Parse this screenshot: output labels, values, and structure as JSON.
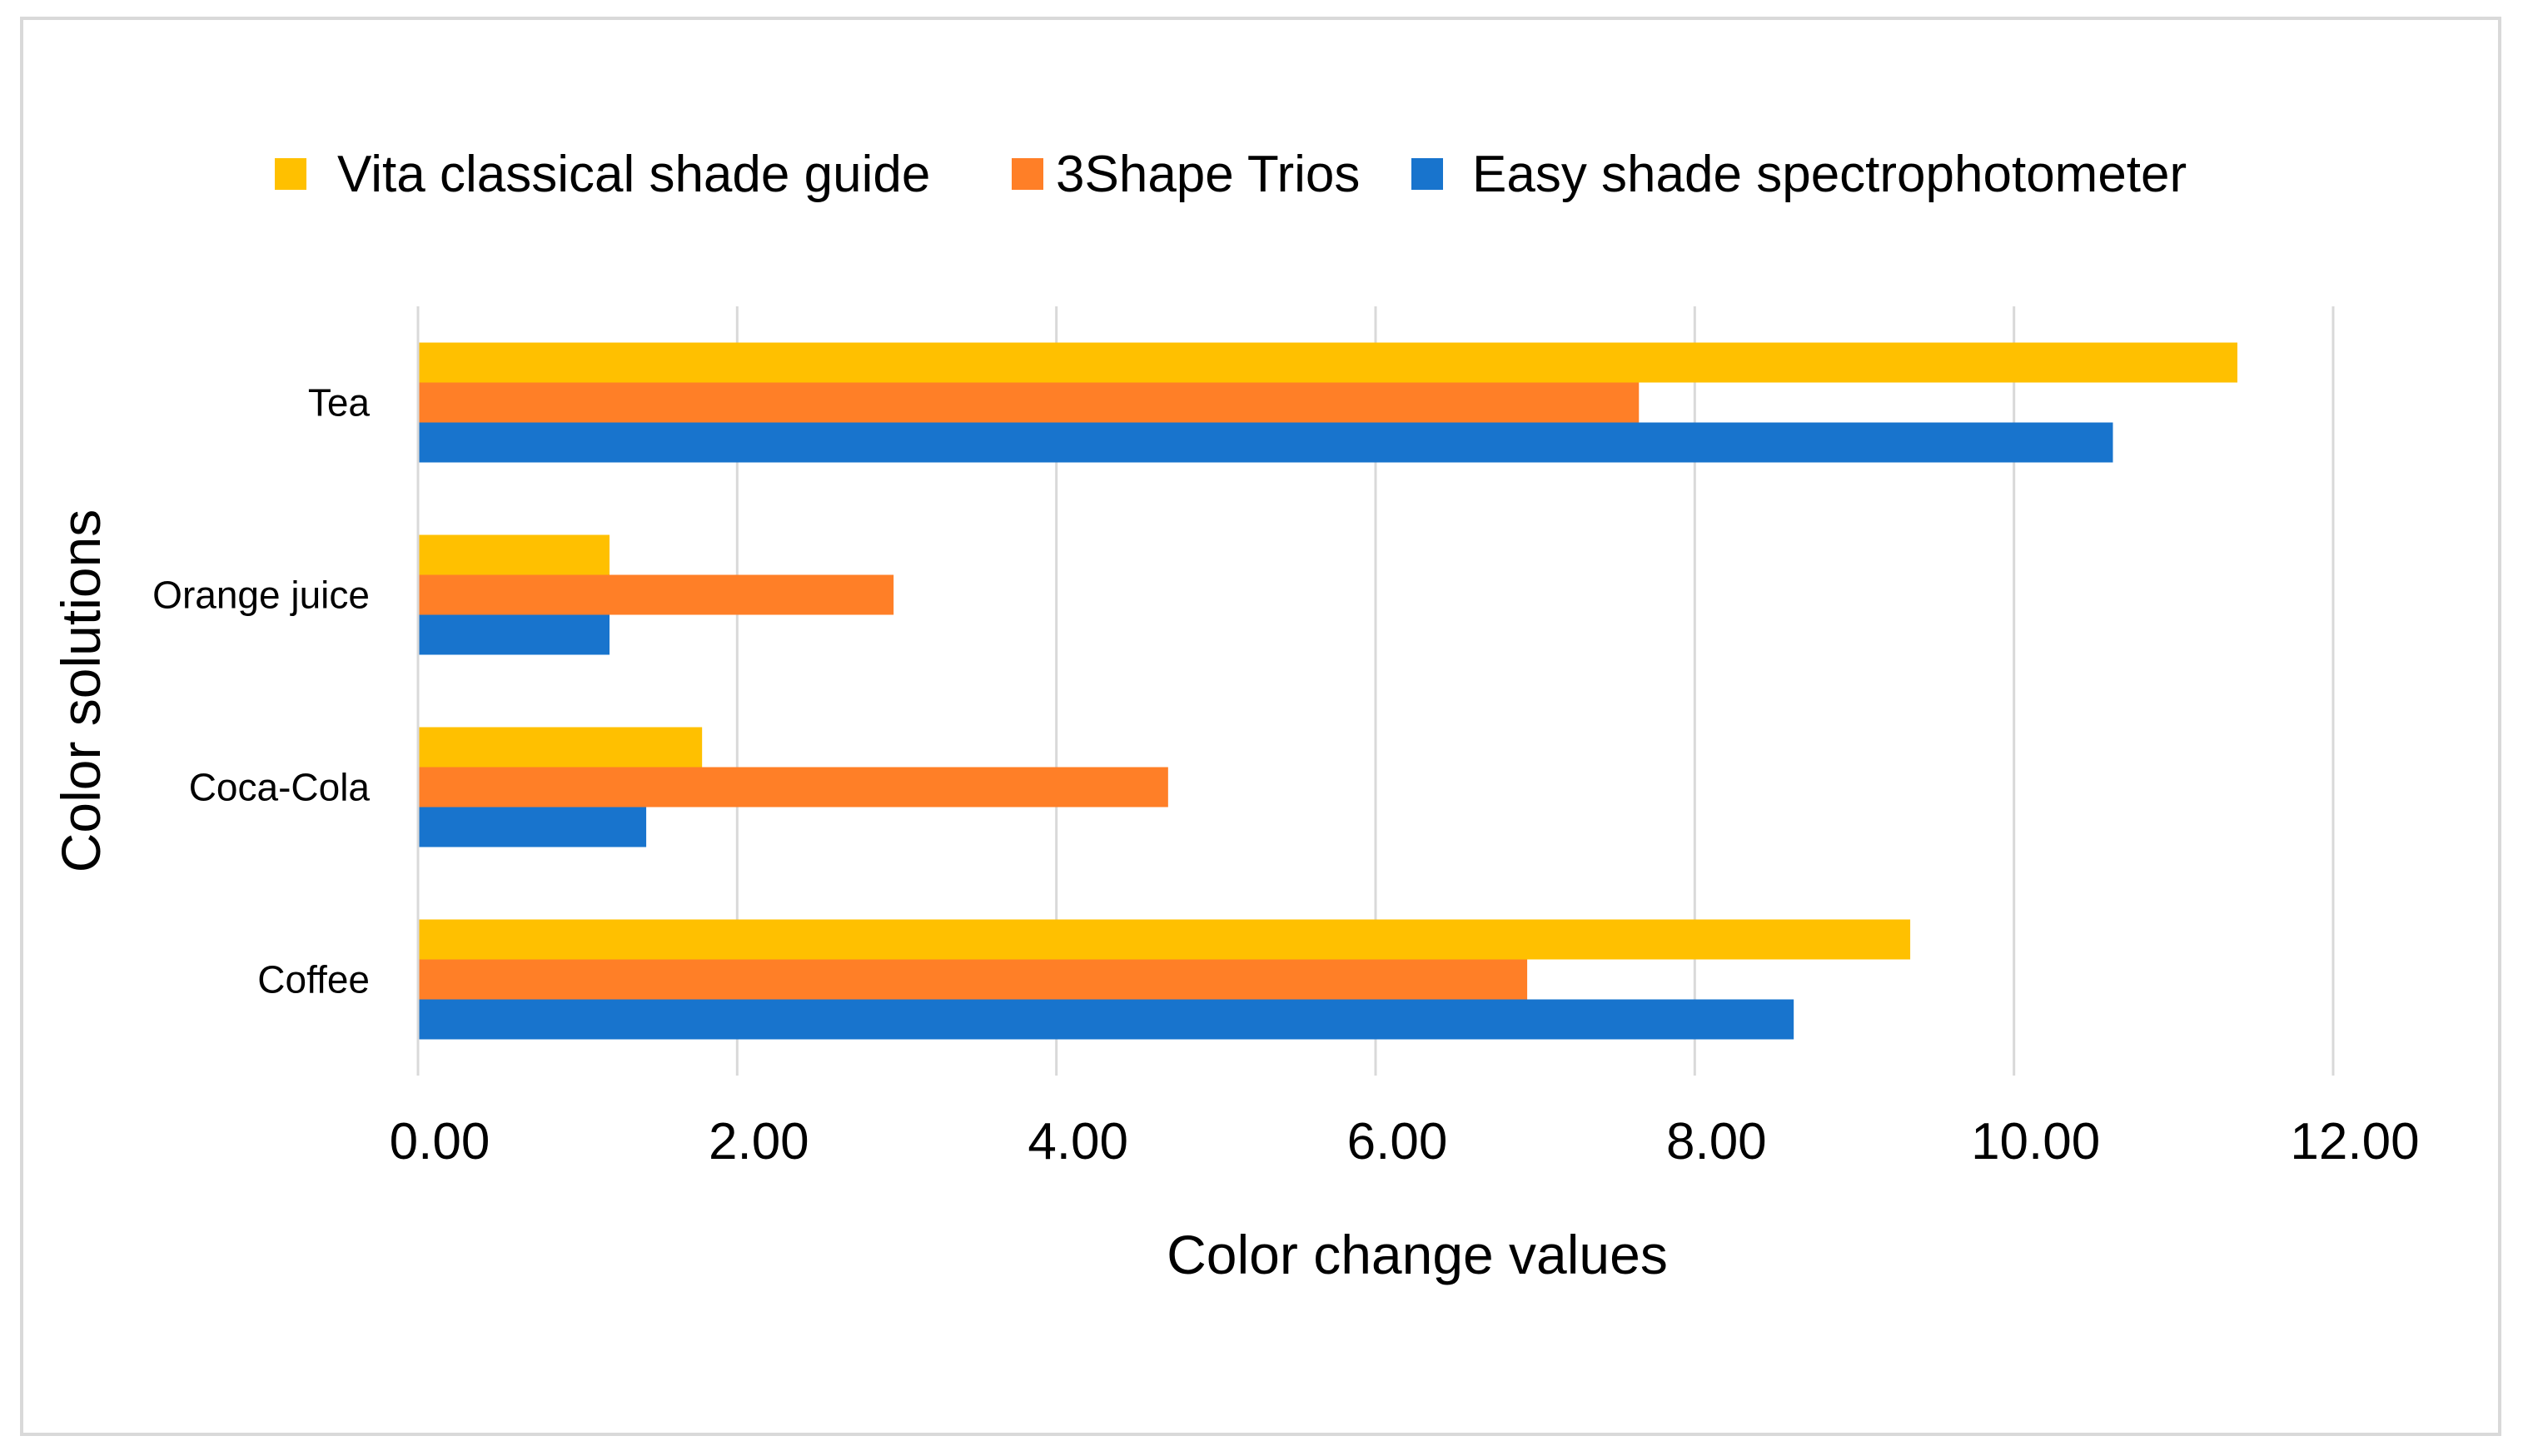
{
  "chart_data": {
    "type": "bar",
    "orientation": "horizontal",
    "title": "",
    "xlabel": "Color change values",
    "ylabel": "Color solutions",
    "xlim": [
      0,
      12
    ],
    "xticks": [
      "0.00",
      "2.00",
      "4.00",
      "6.00",
      "8.00",
      "10.00",
      "12.00"
    ],
    "categories": [
      "Coffee",
      "Coca-Cola",
      "Orange juice",
      "Tea"
    ],
    "series": [
      {
        "name": "Vita classical shade guide",
        "color": "#FFC000",
        "values": [
          9.35,
          1.78,
          1.2,
          11.4
        ]
      },
      {
        "name": "3Shape Trios",
        "color": "#FF7F27",
        "values": [
          6.95,
          4.7,
          2.98,
          7.65
        ]
      },
      {
        "name": "Easy shade spectrophotometer",
        "color": "#1874CD",
        "values": [
          8.62,
          1.43,
          1.2,
          10.62
        ]
      }
    ],
    "grid": "vertical",
    "legend_position": "top"
  }
}
